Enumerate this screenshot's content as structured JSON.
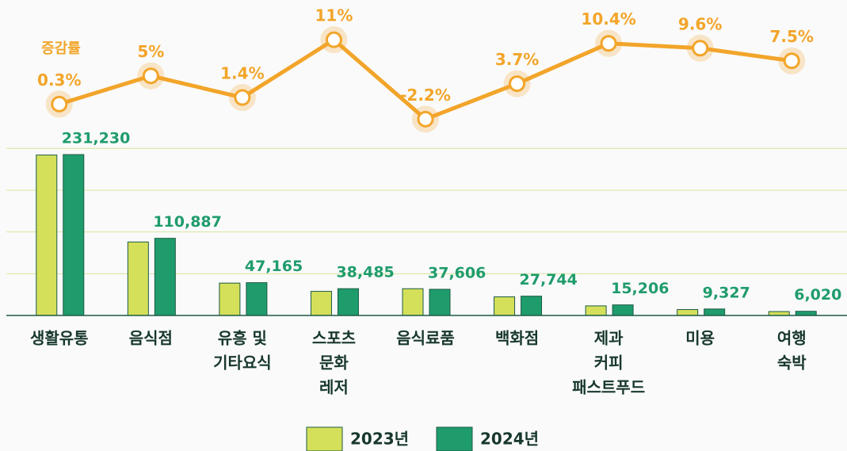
{
  "chart_data": {
    "type": "bar",
    "categories": [
      [
        "생활유통"
      ],
      [
        "음식점"
      ],
      [
        "유흥 및",
        "기타요식"
      ],
      [
        "스포츠",
        "문화",
        "레저"
      ],
      [
        "음식료품"
      ],
      [
        "백화점"
      ],
      [
        "제과",
        "커피",
        "패스트푸드"
      ],
      [
        "미용"
      ],
      [
        "여행",
        "숙박"
      ]
    ],
    "series": [
      {
        "name": "2023년",
        "color": "#d4e05a",
        "values": [
          230538,
          105607,
          46514,
          34671,
          38452,
          26754,
          13774,
          8510,
          5600
        ]
      },
      {
        "name": "2024년",
        "color": "#1f9c6c",
        "values": [
          231230,
          110887,
          47165,
          38485,
          37606,
          27744,
          15206,
          9327,
          6020
        ],
        "value_labels": [
          "231,230",
          "110,887",
          "47,165",
          "38,485",
          "37,606",
          "27,744",
          "15,206",
          "9,327",
          "6,020"
        ]
      },
      {
        "name": "증감률",
        "type": "line",
        "axis": "y2",
        "color": "#f2a52a",
        "values": [
          0.3,
          5,
          1.4,
          11,
          -2.2,
          3.7,
          10.4,
          9.6,
          7.5
        ],
        "value_labels": [
          "0.3%",
          "5%",
          "1.4%",
          "11%",
          "-2.2%",
          "3.7%",
          "10.4%",
          "9.6%",
          "7.5%"
        ]
      }
    ],
    "ylim": [
      0,
      250000
    ],
    "yticks": [
      0,
      60000,
      120000,
      180000,
      240000
    ],
    "y2lim": [
      -4,
      13
    ],
    "grid": true,
    "legend": "bottom"
  }
}
